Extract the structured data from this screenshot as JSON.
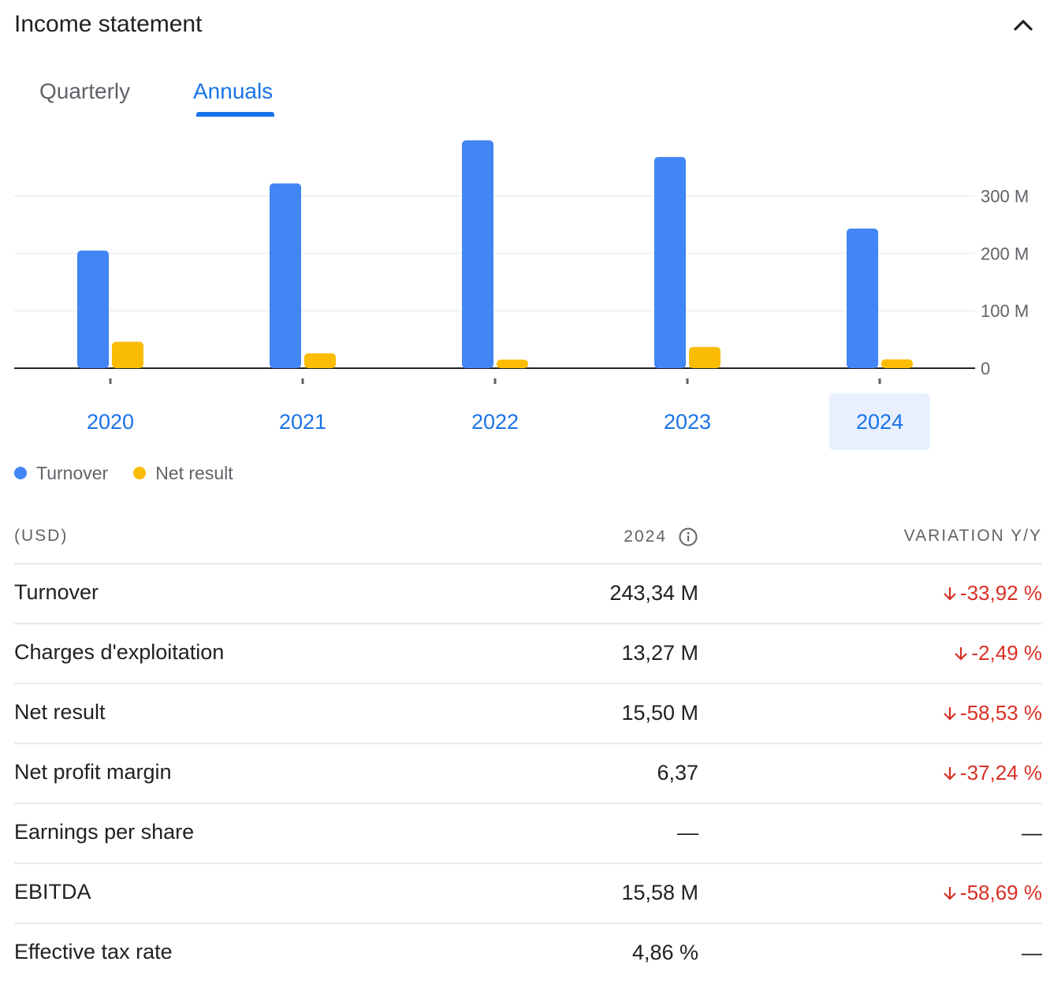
{
  "header": {
    "title": "Income statement",
    "collapse_icon": "chevron-up-icon"
  },
  "tabs": [
    {
      "label": "Quarterly",
      "selected": false
    },
    {
      "label": "Annuals",
      "selected": true
    }
  ],
  "chart_data": {
    "type": "bar",
    "categories": [
      "2020",
      "2021",
      "2022",
      "2023",
      "2024"
    ],
    "series": [
      {
        "name": "Turnover",
        "color": "#4285f4",
        "values": [
          205,
          322,
          397,
          368,
          243.34
        ]
      },
      {
        "name": "Net result",
        "color": "#fbbc04",
        "values": [
          46,
          26,
          15,
          37,
          15.5
        ]
      }
    ],
    "y_ticks": [
      "0",
      "100 M",
      "200 M",
      "300 M"
    ],
    "y_tick_values": [
      0,
      100,
      200,
      300
    ],
    "ylim": [
      0,
      400
    ],
    "selected_category": "2024",
    "grid": true,
    "legend": "bottom-left"
  },
  "table": {
    "unit_header": "(USD)",
    "year_header": "2024",
    "variation_header": "VARIATION Y/Y",
    "rows": [
      {
        "label": "Turnover",
        "value": "243,34 M",
        "variation": "-33,92 %",
        "trend": "down"
      },
      {
        "label": "Charges d'exploitation",
        "value": "13,27 M",
        "variation": "-2,49 %",
        "trend": "down"
      },
      {
        "label": "Net result",
        "value": "15,50 M",
        "variation": "-58,53 %",
        "trend": "down"
      },
      {
        "label": "Net profit margin",
        "value": "6,37",
        "variation": "-37,24 %",
        "trend": "down"
      },
      {
        "label": "Earnings per share",
        "value": "—",
        "variation": "—",
        "trend": "none"
      },
      {
        "label": "EBITDA",
        "value": "15,58 M",
        "variation": "-58,69 %",
        "trend": "down"
      },
      {
        "label": "Effective tax rate",
        "value": "4,86 %",
        "variation": "—",
        "trend": "none"
      }
    ]
  }
}
